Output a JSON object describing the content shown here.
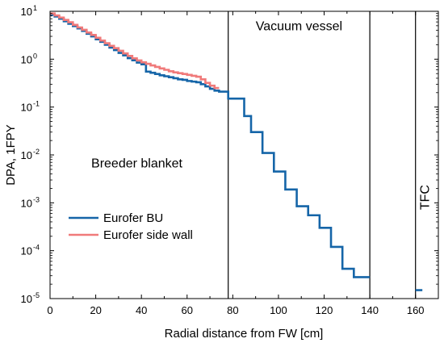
{
  "chart_data": {
    "type": "line",
    "xlabel": "Radial distance from FW [cm]",
    "ylabel": "DPA, 1FPY",
    "xlim": [
      0,
      170
    ],
    "ylim": [
      1e-05,
      10
    ],
    "yscale": "log",
    "x_ticks": [
      0,
      20,
      40,
      60,
      80,
      100,
      120,
      140,
      160
    ],
    "y_ticks": [
      {
        "value": 1e-05,
        "mant": "10",
        "exp": "-5"
      },
      {
        "value": 0.0001,
        "mant": "10",
        "exp": "-4"
      },
      {
        "value": 0.001,
        "mant": "10",
        "exp": "-3"
      },
      {
        "value": 0.01,
        "mant": "10",
        "exp": "-2"
      },
      {
        "value": 0.1,
        "mant": "10",
        "exp": "-1"
      },
      {
        "value": 1,
        "mant": "10",
        "exp": "0"
      },
      {
        "value": 10,
        "mant": "10",
        "exp": "1"
      }
    ],
    "grid": false,
    "legend_position": "lower-left",
    "annotations": [
      {
        "text": "Breeder blanket",
        "x": 38,
        "y": 0.0055,
        "rotate": false
      },
      {
        "text": "Vacuum vessel",
        "x": 109,
        "y": 4.0,
        "rotate": false
      },
      {
        "text": "TFC",
        "x": 166,
        "y": 0.0013,
        "rotate": true
      }
    ],
    "vertical_lines": [
      78,
      140,
      160
    ],
    "series": [
      {
        "name": "Eurofer BU",
        "color": "#1565a8",
        "step": true,
        "points": [
          [
            0,
            8.5
          ],
          [
            2,
            7.8
          ],
          [
            4,
            7.0
          ],
          [
            6,
            6.2
          ],
          [
            8,
            5.5
          ],
          [
            10,
            4.9
          ],
          [
            12,
            4.4
          ],
          [
            14,
            3.9
          ],
          [
            16,
            3.4
          ],
          [
            18,
            3.0
          ],
          [
            20,
            2.6
          ],
          [
            22,
            2.3
          ],
          [
            24,
            2.0
          ],
          [
            26,
            1.75
          ],
          [
            28,
            1.55
          ],
          [
            30,
            1.35
          ],
          [
            32,
            1.2
          ],
          [
            34,
            1.05
          ],
          [
            36,
            0.95
          ],
          [
            38,
            0.85
          ],
          [
            40,
            0.78
          ],
          [
            42,
            0.55
          ],
          [
            44,
            0.52
          ],
          [
            46,
            0.49
          ],
          [
            48,
            0.46
          ],
          [
            50,
            0.44
          ],
          [
            52,
            0.42
          ],
          [
            54,
            0.4
          ],
          [
            56,
            0.38
          ],
          [
            58,
            0.37
          ],
          [
            60,
            0.35
          ],
          [
            62,
            0.34
          ],
          [
            64,
            0.33
          ],
          [
            66,
            0.3
          ],
          [
            68,
            0.27
          ],
          [
            70,
            0.24
          ],
          [
            72,
            0.22
          ],
          [
            74,
            0.21
          ],
          [
            76,
            0.21
          ],
          [
            78,
            0.15
          ],
          [
            82,
            0.15
          ],
          [
            85,
            0.065
          ],
          [
            88,
            0.03
          ],
          [
            93,
            0.011
          ],
          [
            98,
            0.0045
          ],
          [
            103,
            0.0019
          ],
          [
            108,
            0.00085
          ],
          [
            113,
            0.00055
          ],
          [
            118,
            0.0003
          ],
          [
            123,
            0.00012
          ],
          [
            128,
            4.2e-05
          ],
          [
            133,
            2.8e-05
          ],
          [
            140,
            2.8e-05
          ]
        ]
      },
      {
        "name": "Eurofer side wall",
        "color": "#f07a7a",
        "step": true,
        "points": [
          [
            0,
            9.0
          ],
          [
            2,
            8.2
          ],
          [
            4,
            7.4
          ],
          [
            6,
            6.6
          ],
          [
            8,
            5.9
          ],
          [
            10,
            5.2
          ],
          [
            12,
            4.6
          ],
          [
            14,
            4.1
          ],
          [
            16,
            3.6
          ],
          [
            18,
            3.2
          ],
          [
            20,
            2.8
          ],
          [
            22,
            2.45
          ],
          [
            24,
            2.15
          ],
          [
            26,
            1.9
          ],
          [
            28,
            1.7
          ],
          [
            30,
            1.5
          ],
          [
            32,
            1.32
          ],
          [
            34,
            1.17
          ],
          [
            36,
            1.04
          ],
          [
            38,
            0.94
          ],
          [
            40,
            0.86
          ],
          [
            42,
            0.8
          ],
          [
            44,
            0.74
          ],
          [
            46,
            0.69
          ],
          [
            48,
            0.64
          ],
          [
            50,
            0.6
          ],
          [
            52,
            0.56
          ],
          [
            54,
            0.53
          ],
          [
            56,
            0.51
          ],
          [
            58,
            0.49
          ],
          [
            60,
            0.47
          ],
          [
            62,
            0.45
          ],
          [
            64,
            0.43
          ],
          [
            66,
            0.38
          ],
          [
            68,
            0.32
          ],
          [
            70,
            0.28
          ],
          [
            72,
            0.25
          ],
          [
            74,
            0.25
          ]
        ]
      },
      {
        "name": "",
        "color": "#1565a8",
        "step": false,
        "points": [
          [
            160,
            1.5e-05
          ],
          [
            163,
            1.5e-05
          ]
        ]
      }
    ]
  }
}
